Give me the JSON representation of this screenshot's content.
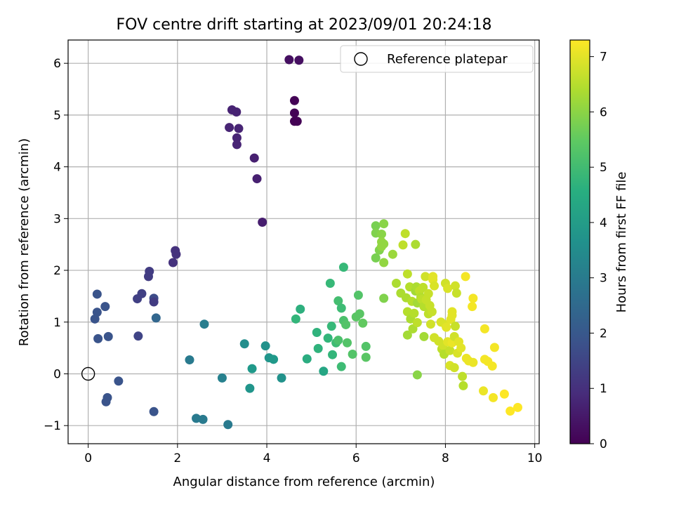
{
  "chart_data": {
    "type": "scatter",
    "title": "FOV centre drift starting at 2023/09/01 20:24:18",
    "xlabel": "Angular distance from reference (arcmin)",
    "ylabel": "Rotation from reference (arcmin)",
    "xlim": [
      -0.45,
      10.1
    ],
    "ylim": [
      -1.35,
      6.45
    ],
    "x_ticks": [
      0,
      2,
      4,
      6,
      8,
      10
    ],
    "y_ticks": [
      -1,
      0,
      1,
      2,
      3,
      4,
      5,
      6
    ],
    "x_tick_labels": [
      "0",
      "2",
      "4",
      "6",
      "8",
      "10"
    ],
    "y_tick_labels": [
      "−1",
      "0",
      "1",
      "2",
      "3",
      "4",
      "5",
      "6"
    ],
    "grid": true,
    "legend": {
      "position": "top-right",
      "entries": [
        {
          "label": "Reference platepar",
          "marker": "open-circle"
        }
      ]
    },
    "reference_point": {
      "x": 0,
      "y": 0
    },
    "colorbar": {
      "label": "Hours from first FF file",
      "colormap": "viridis",
      "range": [
        0,
        7.3
      ],
      "ticks": [
        0,
        1,
        2,
        3,
        4,
        5,
        6,
        7
      ],
      "tick_labels": [
        "0",
        "1",
        "2",
        "3",
        "4",
        "5",
        "6",
        "7"
      ]
    },
    "points": [
      {
        "x": 4.5,
        "y": 6.07,
        "t": 0.3
      },
      {
        "x": 4.72,
        "y": 6.06,
        "t": 0.3
      },
      {
        "x": 4.62,
        "y": 5.28,
        "t": 0.05
      },
      {
        "x": 4.62,
        "y": 5.04,
        "t": 0.05
      },
      {
        "x": 4.62,
        "y": 4.88,
        "t": 0.02
      },
      {
        "x": 4.68,
        "y": 4.88,
        "t": 0.02
      },
      {
        "x": 3.22,
        "y": 5.1,
        "t": 0.7
      },
      {
        "x": 3.32,
        "y": 5.06,
        "t": 0.7
      },
      {
        "x": 3.16,
        "y": 4.76,
        "t": 0.75
      },
      {
        "x": 3.37,
        "y": 4.74,
        "t": 0.75
      },
      {
        "x": 3.33,
        "y": 4.56,
        "t": 0.75
      },
      {
        "x": 3.33,
        "y": 4.43,
        "t": 0.75
      },
      {
        "x": 3.72,
        "y": 4.17,
        "t": 0.65
      },
      {
        "x": 3.78,
        "y": 3.77,
        "t": 0.65
      },
      {
        "x": 3.9,
        "y": 2.93,
        "t": 0.6
      },
      {
        "x": 1.95,
        "y": 2.38,
        "t": 1.05
      },
      {
        "x": 1.97,
        "y": 2.31,
        "t": 1.05
      },
      {
        "x": 1.9,
        "y": 2.15,
        "t": 1.05
      },
      {
        "x": 1.37,
        "y": 1.98,
        "t": 1.3
      },
      {
        "x": 1.35,
        "y": 1.88,
        "t": 1.3
      },
      {
        "x": 1.2,
        "y": 1.55,
        "t": 1.4
      },
      {
        "x": 1.1,
        "y": 1.45,
        "t": 1.4
      },
      {
        "x": 1.47,
        "y": 1.46,
        "t": 1.7
      },
      {
        "x": 1.47,
        "y": 1.39,
        "t": 1.3
      },
      {
        "x": 1.52,
        "y": 1.08,
        "t": 2.4
      },
      {
        "x": 1.12,
        "y": 0.73,
        "t": 1.5
      },
      {
        "x": 0.2,
        "y": 1.54,
        "t": 1.9
      },
      {
        "x": 0.2,
        "y": 1.19,
        "t": 1.9
      },
      {
        "x": 0.38,
        "y": 1.3,
        "t": 1.9
      },
      {
        "x": 0.15,
        "y": 1.06,
        "t": 1.9
      },
      {
        "x": 0.45,
        "y": 0.72,
        "t": 1.9
      },
      {
        "x": 0.22,
        "y": 0.68,
        "t": 1.9
      },
      {
        "x": 0.68,
        "y": -0.14,
        "t": 1.9
      },
      {
        "x": 0.43,
        "y": -0.46,
        "t": 1.9
      },
      {
        "x": 0.4,
        "y": -0.54,
        "t": 1.9
      },
      {
        "x": 1.47,
        "y": -0.73,
        "t": 1.9
      },
      {
        "x": 2.6,
        "y": 0.96,
        "t": 3.1
      },
      {
        "x": 2.27,
        "y": 0.27,
        "t": 3.0
      },
      {
        "x": 2.42,
        "y": -0.86,
        "t": 3.0
      },
      {
        "x": 2.57,
        "y": -0.88,
        "t": 3.0
      },
      {
        "x": 3.0,
        "y": -0.08,
        "t": 3.2
      },
      {
        "x": 3.13,
        "y": -0.98,
        "t": 3.0
      },
      {
        "x": 3.5,
        "y": 0.58,
        "t": 3.6
      },
      {
        "x": 3.62,
        "y": -0.28,
        "t": 3.8
      },
      {
        "x": 3.67,
        "y": 0.1,
        "t": 3.9
      },
      {
        "x": 3.97,
        "y": 0.54,
        "t": 3.7
      },
      {
        "x": 4.05,
        "y": 0.31,
        "t": 3.8
      },
      {
        "x": 4.15,
        "y": 0.28,
        "t": 3.9
      },
      {
        "x": 4.33,
        "y": -0.08,
        "t": 3.7
      },
      {
        "x": 4.65,
        "y": 1.06,
        "t": 4.8
      },
      {
        "x": 4.75,
        "y": 1.25,
        "t": 4.6
      },
      {
        "x": 4.9,
        "y": 0.29,
        "t": 4.5
      },
      {
        "x": 5.12,
        "y": 0.8,
        "t": 4.7
      },
      {
        "x": 5.15,
        "y": 0.49,
        "t": 4.7
      },
      {
        "x": 5.27,
        "y": 0.05,
        "t": 4.3
      },
      {
        "x": 5.37,
        "y": 0.69,
        "t": 4.8
      },
      {
        "x": 5.42,
        "y": 1.75,
        "t": 4.9
      },
      {
        "x": 5.45,
        "y": 0.92,
        "t": 4.9
      },
      {
        "x": 5.47,
        "y": 0.37,
        "t": 4.8
      },
      {
        "x": 5.55,
        "y": 0.6,
        "t": 5.0
      },
      {
        "x": 5.6,
        "y": 1.41,
        "t": 5.1
      },
      {
        "x": 5.6,
        "y": 0.65,
        "t": 5.2
      },
      {
        "x": 5.67,
        "y": 1.27,
        "t": 5.0
      },
      {
        "x": 5.67,
        "y": 0.14,
        "t": 5.0
      },
      {
        "x": 5.72,
        "y": 2.06,
        "t": 4.9
      },
      {
        "x": 5.72,
        "y": 1.03,
        "t": 5.2
      },
      {
        "x": 5.77,
        "y": 0.95,
        "t": 5.3
      },
      {
        "x": 5.8,
        "y": 0.6,
        "t": 5.3
      },
      {
        "x": 5.92,
        "y": 0.38,
        "t": 5.3
      },
      {
        "x": 6.0,
        "y": 1.1,
        "t": 5.4
      },
      {
        "x": 6.05,
        "y": 1.52,
        "t": 5.3
      },
      {
        "x": 6.08,
        "y": 1.16,
        "t": 5.4
      },
      {
        "x": 6.15,
        "y": 0.98,
        "t": 5.5
      },
      {
        "x": 6.22,
        "y": 0.53,
        "t": 5.3
      },
      {
        "x": 6.22,
        "y": 0.32,
        "t": 5.4
      },
      {
        "x": 6.44,
        "y": 2.86,
        "t": 5.8
      },
      {
        "x": 6.44,
        "y": 2.72,
        "t": 5.9
      },
      {
        "x": 6.44,
        "y": 2.24,
        "t": 5.8
      },
      {
        "x": 6.52,
        "y": 2.39,
        "t": 5.9
      },
      {
        "x": 6.57,
        "y": 2.7,
        "t": 6.0
      },
      {
        "x": 6.57,
        "y": 2.55,
        "t": 6.1
      },
      {
        "x": 6.57,
        "y": 2.46,
        "t": 6.1
      },
      {
        "x": 6.62,
        "y": 2.9,
        "t": 6.0
      },
      {
        "x": 6.62,
        "y": 2.51,
        "t": 6.1
      },
      {
        "x": 6.62,
        "y": 2.15,
        "t": 6.1
      },
      {
        "x": 6.62,
        "y": 1.46,
        "t": 5.9
      },
      {
        "x": 6.82,
        "y": 2.31,
        "t": 6.2
      },
      {
        "x": 6.9,
        "y": 1.75,
        "t": 6.4
      },
      {
        "x": 7.0,
        "y": 1.56,
        "t": 6.4
      },
      {
        "x": 7.05,
        "y": 2.49,
        "t": 6.6
      },
      {
        "x": 7.1,
        "y": 2.71,
        "t": 6.6
      },
      {
        "x": 7.12,
        "y": 1.47,
        "t": 6.4
      },
      {
        "x": 7.15,
        "y": 1.93,
        "t": 6.6
      },
      {
        "x": 7.15,
        "y": 1.2,
        "t": 6.5
      },
      {
        "x": 7.15,
        "y": 0.75,
        "t": 6.3
      },
      {
        "x": 7.2,
        "y": 1.68,
        "t": 6.5
      },
      {
        "x": 7.22,
        "y": 1.06,
        "t": 6.4
      },
      {
        "x": 7.25,
        "y": 1.4,
        "t": 6.5
      },
      {
        "x": 7.27,
        "y": 0.87,
        "t": 6.4
      },
      {
        "x": 7.3,
        "y": 1.17,
        "t": 6.5
      },
      {
        "x": 7.33,
        "y": 2.5,
        "t": 6.4
      },
      {
        "x": 7.33,
        "y": 1.6,
        "t": 6.3
      },
      {
        "x": 7.35,
        "y": 1.68,
        "t": 6.4
      },
      {
        "x": 7.37,
        "y": 1.37,
        "t": 6.3
      },
      {
        "x": 7.37,
        "y": 0.99,
        "t": 6.6
      },
      {
        "x": 7.37,
        "y": -0.02,
        "t": 6.0
      },
      {
        "x": 7.42,
        "y": 1.6,
        "t": 6.6
      },
      {
        "x": 7.45,
        "y": 1.48,
        "t": 6.5
      },
      {
        "x": 7.47,
        "y": 1.44,
        "t": 6.6
      },
      {
        "x": 7.5,
        "y": 1.67,
        "t": 6.6
      },
      {
        "x": 7.52,
        "y": 1.3,
        "t": 6.5
      },
      {
        "x": 7.52,
        "y": 0.72,
        "t": 6.3
      },
      {
        "x": 7.55,
        "y": 1.88,
        "t": 6.8
      },
      {
        "x": 7.57,
        "y": 1.43,
        "t": 6.7
      },
      {
        "x": 7.62,
        "y": 1.55,
        "t": 6.7
      },
      {
        "x": 7.62,
        "y": 1.16,
        "t": 6.6
      },
      {
        "x": 7.65,
        "y": 1.32,
        "t": 6.7
      },
      {
        "x": 7.67,
        "y": 0.96,
        "t": 6.8
      },
      {
        "x": 7.7,
        "y": 1.2,
        "t": 6.7
      },
      {
        "x": 7.72,
        "y": 1.88,
        "t": 7.0
      },
      {
        "x": 7.72,
        "y": 1.82,
        "t": 7.0
      },
      {
        "x": 7.75,
        "y": 1.7,
        "t": 6.9
      },
      {
        "x": 7.75,
        "y": 0.7,
        "t": 6.8
      },
      {
        "x": 7.85,
        "y": 0.63,
        "t": 6.8
      },
      {
        "x": 7.9,
        "y": 1.0,
        "t": 6.9
      },
      {
        "x": 7.92,
        "y": 0.48,
        "t": 6.6
      },
      {
        "x": 7.95,
        "y": 0.55,
        "t": 6.8
      },
      {
        "x": 7.97,
        "y": 0.38,
        "t": 6.5
      },
      {
        "x": 8.0,
        "y": 1.75,
        "t": 6.8
      },
      {
        "x": 8.0,
        "y": 0.95,
        "t": 6.9
      },
      {
        "x": 8.02,
        "y": 0.9,
        "t": 7.0
      },
      {
        "x": 8.05,
        "y": 1.65,
        "t": 6.9
      },
      {
        "x": 8.05,
        "y": 0.62,
        "t": 7.0
      },
      {
        "x": 8.1,
        "y": 0.45,
        "t": 6.7
      },
      {
        "x": 8.1,
        "y": 0.16,
        "t": 6.9
      },
      {
        "x": 8.12,
        "y": 1.05,
        "t": 7.0
      },
      {
        "x": 8.15,
        "y": 1.2,
        "t": 7.0
      },
      {
        "x": 8.15,
        "y": 1.13,
        "t": 7.0
      },
      {
        "x": 8.15,
        "y": 0.6,
        "t": 7.1
      },
      {
        "x": 8.2,
        "y": 0.72,
        "t": 6.8
      },
      {
        "x": 8.2,
        "y": 0.12,
        "t": 6.8
      },
      {
        "x": 8.22,
        "y": 1.7,
        "t": 6.8
      },
      {
        "x": 8.22,
        "y": 0.92,
        "t": 6.7
      },
      {
        "x": 8.25,
        "y": 1.56,
        "t": 6.7
      },
      {
        "x": 8.27,
        "y": 0.4,
        "t": 6.9
      },
      {
        "x": 8.3,
        "y": 0.62,
        "t": 7.0
      },
      {
        "x": 8.35,
        "y": 0.5,
        "t": 7.0
      },
      {
        "x": 8.38,
        "y": -0.05,
        "t": 6.6
      },
      {
        "x": 8.4,
        "y": -0.23,
        "t": 6.5
      },
      {
        "x": 8.45,
        "y": 1.88,
        "t": 7.2
      },
      {
        "x": 8.47,
        "y": 0.3,
        "t": 7.1
      },
      {
        "x": 8.52,
        "y": 0.25,
        "t": 7.1
      },
      {
        "x": 8.6,
        "y": 1.3,
        "t": 7.2
      },
      {
        "x": 8.62,
        "y": 1.46,
        "t": 7.2
      },
      {
        "x": 8.62,
        "y": 0.22,
        "t": 7.1
      },
      {
        "x": 8.85,
        "y": -0.33,
        "t": 7.1
      },
      {
        "x": 8.88,
        "y": 0.87,
        "t": 7.2
      },
      {
        "x": 8.88,
        "y": 0.28,
        "t": 7.2
      },
      {
        "x": 8.95,
        "y": 0.24,
        "t": 7.2
      },
      {
        "x": 9.05,
        "y": 0.15,
        "t": 7.2
      },
      {
        "x": 9.07,
        "y": -0.46,
        "t": 7.2
      },
      {
        "x": 9.1,
        "y": 0.51,
        "t": 7.2
      },
      {
        "x": 9.32,
        "y": -0.39,
        "t": 7.3
      },
      {
        "x": 9.45,
        "y": -0.72,
        "t": 7.3
      },
      {
        "x": 9.62,
        "y": -0.65,
        "t": 7.3
      }
    ]
  }
}
